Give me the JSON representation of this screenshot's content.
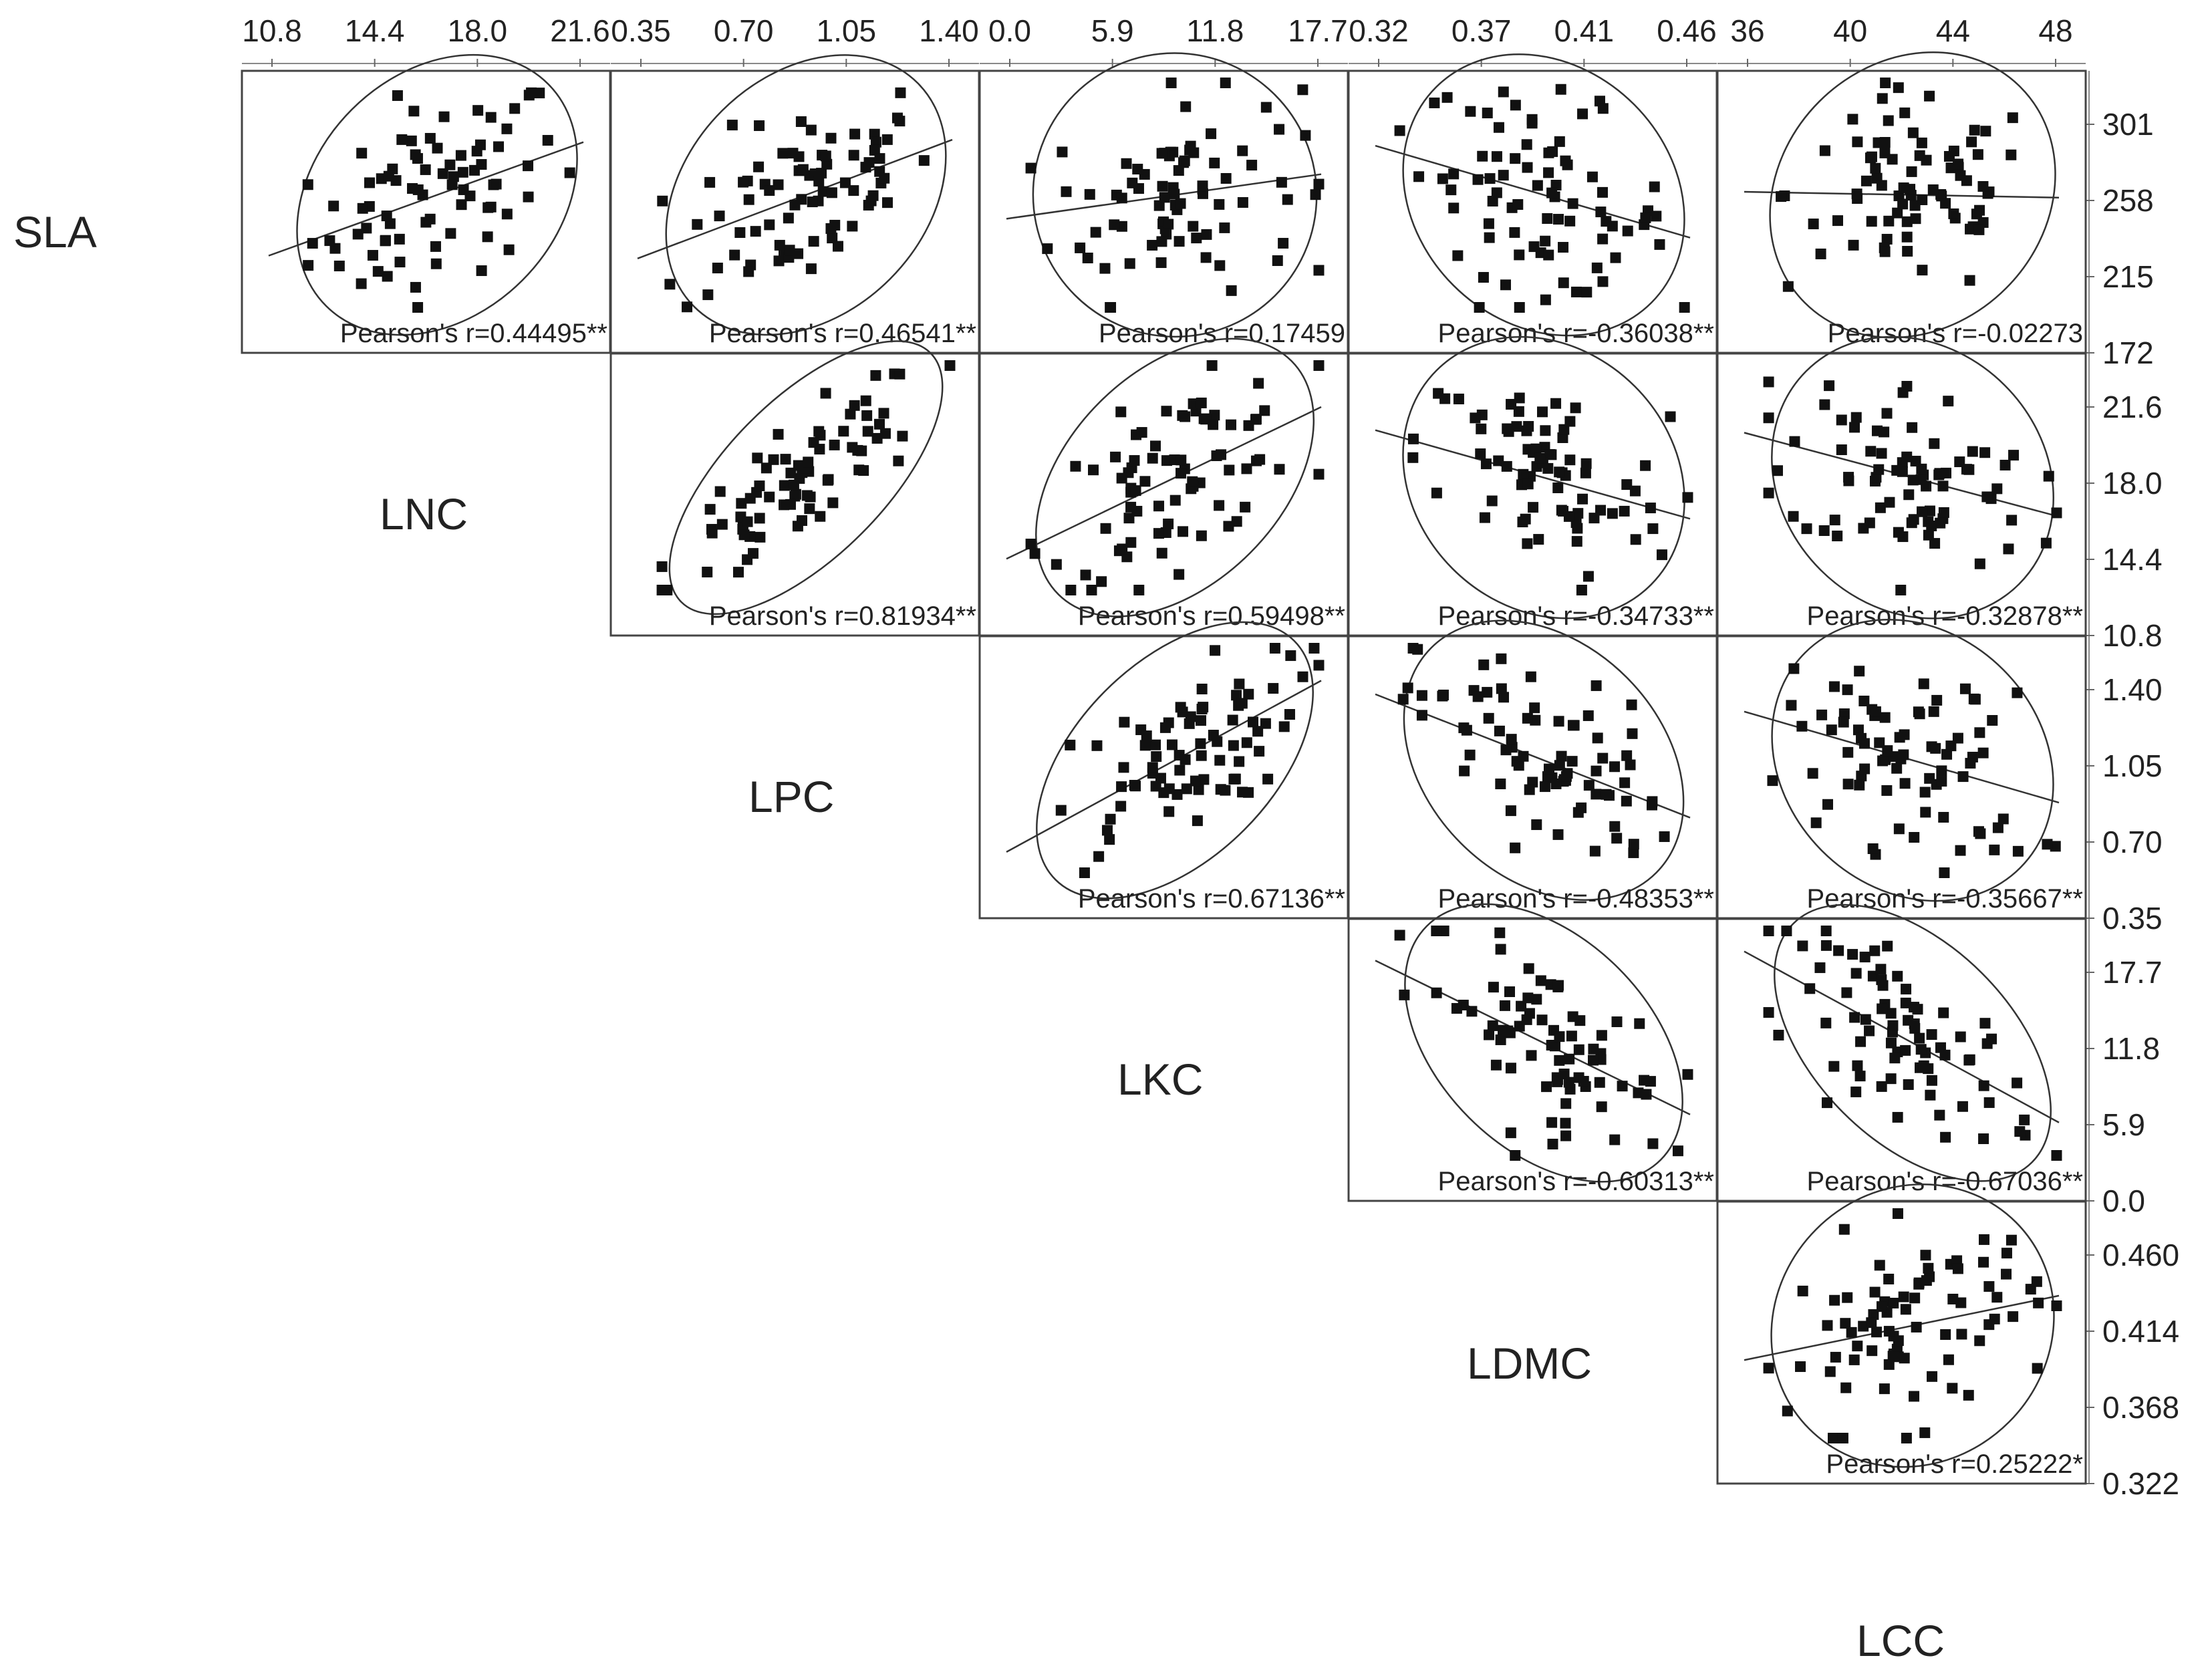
{
  "chart_data": {
    "type": "scatter",
    "title": "",
    "variables": [
      "SLA",
      "LNC",
      "LPC",
      "LKC",
      "LDMC",
      "LCC"
    ],
    "top_axis_ticks": [
      [
        "10.8",
        "14.4",
        "18.0",
        "21.6"
      ],
      [
        "0.35",
        "0.70",
        "1.05",
        "1.40"
      ],
      [
        "0.0",
        "5.9",
        "11.8",
        "17.7"
      ],
      [
        "0.32",
        "0.37",
        "0.41",
        "0.46"
      ],
      [
        "36",
        "40",
        "44",
        "48"
      ]
    ],
    "right_axis_ticks": [
      [
        "301",
        "258",
        "215",
        "172"
      ],
      [
        "21.6",
        "18.0",
        "14.4",
        "10.8"
      ],
      [
        "1.40",
        "1.05",
        "0.70",
        "0.35"
      ],
      [
        "17.7",
        "11.8",
        "5.9",
        "0.0"
      ],
      [
        "0.460",
        "0.414",
        "0.368",
        "0.322"
      ]
    ],
    "panels": [
      {
        "x": "LNC",
        "y": "SLA",
        "r_label": "Pearson's r=0.44495**",
        "r": 0.44495,
        "fit": true
      },
      {
        "x": "LPC",
        "y": "SLA",
        "r_label": "Pearson's r=0.46541**",
        "r": 0.46541,
        "fit": true
      },
      {
        "x": "LKC",
        "y": "SLA",
        "r_label": "Pearson's r=0.17459",
        "r": 0.17459,
        "fit": true
      },
      {
        "x": "LDMC",
        "y": "SLA",
        "r_label": "Pearson's r=-0.36038**",
        "r": -0.36038,
        "fit": true
      },
      {
        "x": "LCC",
        "y": "SLA",
        "r_label": "Pearson's r=-0.02273",
        "r": -0.02273,
        "fit": true
      },
      {
        "x": "LPC",
        "y": "LNC",
        "r_label": "Pearson's r=0.81934**",
        "r": 0.81934,
        "fit": false
      },
      {
        "x": "LKC",
        "y": "LNC",
        "r_label": "Pearson's r=0.59498**",
        "r": 0.59498,
        "fit": true
      },
      {
        "x": "LDMC",
        "y": "LNC",
        "r_label": "Pearson's r=-0.34733**",
        "r": -0.34733,
        "fit": true
      },
      {
        "x": "LCC",
        "y": "LNC",
        "r_label": "Pearson's r=-0.32878**",
        "r": -0.32878,
        "fit": true
      },
      {
        "x": "LKC",
        "y": "LPC",
        "r_label": "Pearson's r=0.67136**",
        "r": 0.67136,
        "fit": true
      },
      {
        "x": "LDMC",
        "y": "LPC",
        "r_label": "Pearson's r=-0.48353**",
        "r": -0.48353,
        "fit": true
      },
      {
        "x": "LCC",
        "y": "LPC",
        "r_label": "Pearson's r=-0.35667**",
        "r": -0.35667,
        "fit": true
      },
      {
        "x": "LDMC",
        "y": "LKC",
        "r_label": "Pearson's r=-0.60313**",
        "r": -0.60313,
        "fit": true
      },
      {
        "x": "LCC",
        "y": "LKC",
        "r_label": "Pearson's r=-0.67036**",
        "r": -0.67036,
        "fit": true
      },
      {
        "x": "LCC",
        "y": "LDMC",
        "r_label": "Pearson's r=0.25222*",
        "r": 0.25222,
        "fit": true
      }
    ],
    "n_points_per_panel": 80,
    "marker": "filled-square",
    "confidence_ellipse": true,
    "grid": false,
    "legend": "none"
  }
}
